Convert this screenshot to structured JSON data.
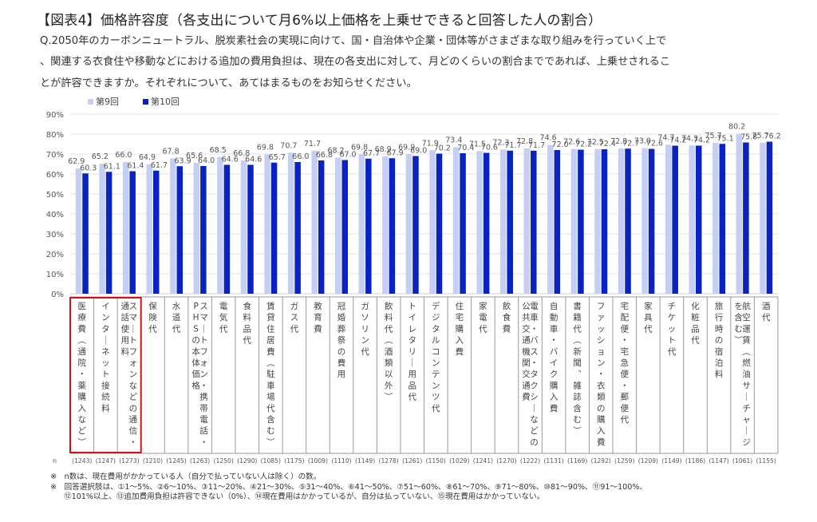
{
  "header": {
    "title": "【図表4】価格許容度（各支出について月6%以上価格を上乗せできると回答した人の割合）",
    "question_lines": [
      "Q.2050年のカーボンニュートラル、脱炭素社会の実現に向けて、国・自治体や企業・団体等がさまざまな取り組みを行っていく上で",
      "、関連する衣食住や移動などにおける追加の費用負担は、現在の各支出に対して、月どのくらいの割合までであれば、上乗せされるこ",
      "とが許容できますか。それぞれについて、あてはまるものをお知らせください。"
    ]
  },
  "notes": [
    "※　n数は、現在費用がかかっている人（自分で払っていない人は除く）の数。",
    "※　回答選択肢は、①1～5%、②6～10%、③11～20%、④21～30%、⑤31～40%、⑥41～50%、⑦51～60%、⑧61～70%、⑨71～80%、⑩81～90%、⑪91～100%、",
    "⑫101%以上、⑬追加費用負担は許容できない（0%）、⑭現在費用はかかっているが、自分は払っていない、⑮現在費用はかかっていない。"
  ],
  "chart_data": {
    "type": "bar",
    "title": "価格許容度",
    "xlabel": "",
    "ylabel": "",
    "ylim": [
      0,
      90
    ],
    "y_ticks": [
      "0%",
      "10%",
      "20%",
      "30%",
      "40%",
      "50%",
      "60%",
      "70%",
      "80%",
      "90%"
    ],
    "grid": true,
    "legend_position": "top-left",
    "n_label": "n",
    "highlight_color": "#d0121b",
    "highlighted_categories": [
      0,
      1,
      2
    ],
    "categories": [
      "医療費（通院・薬購入など）",
      "インターネット接続料",
      "スマートフォンなどの通信・通話使用料",
      "保険代",
      "水道代",
      "スマートフォン・携帯電話・PHSの本体価格",
      "電気代",
      "食料品代",
      "賃貸住居費（駐車場代含む）",
      "ガス代",
      "教育費",
      "冠婚葬祭の費用",
      "ガソリン代",
      "飲料代（酒類以外）",
      "トイレタリー用品代",
      "デジタルコンテンツ代",
      "住宅購入費",
      "家電代",
      "飲食費",
      "電車・バス・タクシーなどの公共交通機関交通費",
      "自動車・バイク購入費",
      "書籍代（新聞、雑誌含む）",
      "ファッション・衣類の購入費",
      "宅配便・宅急便・郵便代",
      "家具代",
      "チケット代",
      "化粧品代",
      "旅行時の宿泊料",
      "航空運賃（燃油サーチャージを含む）",
      "酒代"
    ],
    "n": [
      "(1243)",
      "(1247)",
      "(1273)",
      "(1210)",
      "(1245)",
      "(1263)",
      "(1250)",
      "(1290)",
      "(1085)",
      "(1175)",
      "(1009)",
      "(1110)",
      "(1149)",
      "(1278)",
      "(1261)",
      "(1150)",
      "(1029)",
      "(1241)",
      "(1270)",
      "(1222)",
      "(1131)",
      "(1169)",
      "(1292)",
      "(1259)",
      "(1209)",
      "(1149)",
      "(1186)",
      "(1147)",
      "(1061)",
      "(1155)"
    ],
    "series": [
      {
        "name": "第9回",
        "color": "#c5cff5",
        "values": [
          62.9,
          65.2,
          66.0,
          64.9,
          67.8,
          65.6,
          68.5,
          66.8,
          69.8,
          70.7,
          71.7,
          68.2,
          69.8,
          68.9,
          69.9,
          71.9,
          73.4,
          71.5,
          72.3,
          72.8,
          74.6,
          72.6,
          72.5,
          72.8,
          73.0,
          74.7,
          74.3,
          75.7,
          80.2,
          75.7
        ]
      },
      {
        "name": "第10回",
        "color": "#0a22c0",
        "values": [
          60.3,
          61.1,
          61.4,
          61.7,
          63.9,
          64.0,
          64.6,
          64.6,
          65.7,
          66.0,
          66.8,
          67.0,
          67.7,
          67.9,
          69.0,
          70.2,
          70.4,
          70.6,
          71.7,
          71.7,
          72.0,
          72.2,
          72.4,
          72.7,
          72.6,
          74.2,
          74.2,
          75.1,
          75.8,
          76.2
        ]
      }
    ]
  }
}
